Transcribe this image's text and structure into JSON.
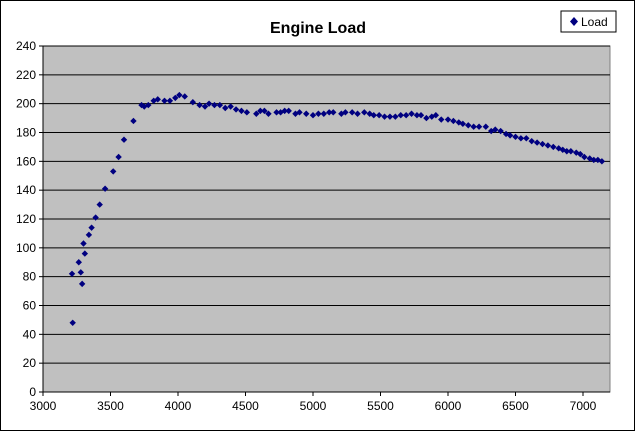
{
  "chart_data": {
    "type": "scatter",
    "title": "Engine Load",
    "xlabel": "",
    "ylabel": "",
    "xlim": [
      3000,
      7200
    ],
    "ylim": [
      0,
      240
    ],
    "xticks": [
      3000,
      3500,
      4000,
      4500,
      5000,
      5500,
      6000,
      6500,
      7000
    ],
    "yticks": [
      0,
      20,
      40,
      60,
      80,
      100,
      120,
      140,
      160,
      180,
      200,
      220,
      240
    ],
    "grid": "horizontal",
    "legend_position": "top-right",
    "plot_background": "#c0c0c0",
    "marker_color": "#000080",
    "series": [
      {
        "name": "Load",
        "points": [
          [
            3220,
            48
          ],
          [
            3215,
            82
          ],
          [
            3265,
            90
          ],
          [
            3280,
            83
          ],
          [
            3290,
            75
          ],
          [
            3300,
            103
          ],
          [
            3310,
            96
          ],
          [
            3340,
            109
          ],
          [
            3360,
            114
          ],
          [
            3390,
            121
          ],
          [
            3420,
            130
          ],
          [
            3460,
            141
          ],
          [
            3520,
            153
          ],
          [
            3560,
            163
          ],
          [
            3600,
            175
          ],
          [
            3670,
            188
          ],
          [
            3730,
            199
          ],
          [
            3750,
            198
          ],
          [
            3780,
            199
          ],
          [
            3820,
            202
          ],
          [
            3850,
            203
          ],
          [
            3900,
            202
          ],
          [
            3940,
            202
          ],
          [
            3980,
            204
          ],
          [
            4010,
            206
          ],
          [
            4050,
            205
          ],
          [
            4110,
            201
          ],
          [
            4160,
            199
          ],
          [
            4200,
            198
          ],
          [
            4230,
            200
          ],
          [
            4270,
            199
          ],
          [
            4310,
            199
          ],
          [
            4350,
            197
          ],
          [
            4390,
            198
          ],
          [
            4430,
            196
          ],
          [
            4470,
            195
          ],
          [
            4510,
            194
          ],
          [
            4580,
            193
          ],
          [
            4610,
            195
          ],
          [
            4640,
            195
          ],
          [
            4670,
            193
          ],
          [
            4730,
            194
          ],
          [
            4760,
            194
          ],
          [
            4790,
            195
          ],
          [
            4820,
            195
          ],
          [
            4870,
            193
          ],
          [
            4900,
            194
          ],
          [
            4950,
            193
          ],
          [
            5000,
            192
          ],
          [
            5040,
            193
          ],
          [
            5080,
            193
          ],
          [
            5120,
            194
          ],
          [
            5150,
            194
          ],
          [
            5210,
            193
          ],
          [
            5240,
            194
          ],
          [
            5290,
            194
          ],
          [
            5330,
            193
          ],
          [
            5380,
            194
          ],
          [
            5420,
            193
          ],
          [
            5450,
            192
          ],
          [
            5490,
            192
          ],
          [
            5530,
            191
          ],
          [
            5570,
            191
          ],
          [
            5610,
            191
          ],
          [
            5650,
            192
          ],
          [
            5690,
            192
          ],
          [
            5730,
            193
          ],
          [
            5770,
            192
          ],
          [
            5800,
            192
          ],
          [
            5840,
            190
          ],
          [
            5880,
            191
          ],
          [
            5910,
            192
          ],
          [
            5950,
            189
          ],
          [
            6000,
            189
          ],
          [
            6040,
            188
          ],
          [
            6080,
            187
          ],
          [
            6110,
            186
          ],
          [
            6150,
            185
          ],
          [
            6190,
            184
          ],
          [
            6230,
            184
          ],
          [
            6280,
            184
          ],
          [
            6320,
            181
          ],
          [
            6350,
            182
          ],
          [
            6390,
            181
          ],
          [
            6430,
            179
          ],
          [
            6460,
            178
          ],
          [
            6500,
            177
          ],
          [
            6540,
            176
          ],
          [
            6580,
            176
          ],
          [
            6620,
            174
          ],
          [
            6660,
            173
          ],
          [
            6700,
            172
          ],
          [
            6740,
            171
          ],
          [
            6780,
            170
          ],
          [
            6820,
            169
          ],
          [
            6850,
            168
          ],
          [
            6880,
            167
          ],
          [
            6910,
            167
          ],
          [
            6950,
            166
          ],
          [
            6980,
            165
          ],
          [
            7010,
            163
          ],
          [
            7050,
            162
          ],
          [
            7080,
            161
          ],
          [
            7110,
            161
          ],
          [
            7140,
            160
          ]
        ]
      }
    ]
  }
}
